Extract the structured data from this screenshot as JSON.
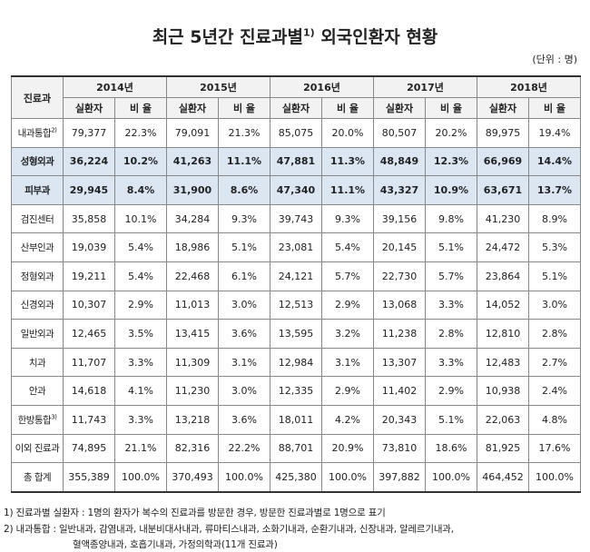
{
  "title": {
    "text": "최근 5년간 진료과별",
    "note": "1)",
    "rest": "외국인환자 현황"
  },
  "unit": "(단위 : 명)",
  "table": {
    "corner": "진료과",
    "years": [
      "2014년",
      "2015년",
      "2016년",
      "2017년",
      "2018년"
    ],
    "subheaders": [
      "실환자",
      "비 율"
    ],
    "rows": [
      {
        "name": "내과통합",
        "note": "2)",
        "cells": [
          "79,377",
          "22.3%",
          "79,091",
          "21.3%",
          "85,075",
          "20.0%",
          "80,507",
          "20.2%",
          "89,975",
          "19.4%"
        ]
      },
      {
        "name": "성형외과",
        "highlight": true,
        "cells": [
          "36,224",
          "10.2%",
          "41,263",
          "11.1%",
          "47,881",
          "11.3%",
          "48,849",
          "12.3%",
          "66,969",
          "14.4%"
        ]
      },
      {
        "name": "피부과",
        "highlight": true,
        "cells": [
          "29,945",
          "8.4%",
          "31,900",
          "8.6%",
          "47,340",
          "11.1%",
          "43,327",
          "10.9%",
          "63,671",
          "13.7%"
        ]
      },
      {
        "name": "검진센터",
        "cells": [
          "35,858",
          "10.1%",
          "34,284",
          "9.3%",
          "39,743",
          "9.3%",
          "39,156",
          "9.8%",
          "41,230",
          "8.9%"
        ]
      },
      {
        "name": "산부인과",
        "cells": [
          "19,039",
          "5.4%",
          "18,986",
          "5.1%",
          "23,081",
          "5.4%",
          "20,145",
          "5.1%",
          "24,472",
          "5.3%"
        ]
      },
      {
        "name": "정형외과",
        "cells": [
          "19,211",
          "5.4%",
          "22,468",
          "6.1%",
          "24,121",
          "5.7%",
          "22,730",
          "5.7%",
          "23,864",
          "5.1%"
        ]
      },
      {
        "name": "신경외과",
        "cells": [
          "10,307",
          "2.9%",
          "11,013",
          "3.0%",
          "12,513",
          "2.9%",
          "13,068",
          "3.3%",
          "14,052",
          "3.0%"
        ]
      },
      {
        "name": "일반외과",
        "cells": [
          "12,465",
          "3.5%",
          "13,415",
          "3.6%",
          "13,595",
          "3.2%",
          "11,238",
          "2.8%",
          "12,810",
          "2.8%"
        ]
      },
      {
        "name": "치과",
        "cells": [
          "11,707",
          "3.3%",
          "11,309",
          "3.1%",
          "12,984",
          "3.1%",
          "13,307",
          "3.3%",
          "12,483",
          "2.7%"
        ]
      },
      {
        "name": "안과",
        "cells": [
          "14,618",
          "4.1%",
          "11,230",
          "3.0%",
          "12,335",
          "2.9%",
          "11,402",
          "2.9%",
          "10,938",
          "2.4%"
        ]
      },
      {
        "name": "한방통합",
        "note": "3)",
        "cells": [
          "11,743",
          "3.3%",
          "13,218",
          "3.6%",
          "18,011",
          "4.2%",
          "20,343",
          "5.1%",
          "22,063",
          "4.8%"
        ]
      },
      {
        "name": "이외 진료과",
        "cells": [
          "74,895",
          "21.1%",
          "82,316",
          "22.2%",
          "88,701",
          "20.9%",
          "73,810",
          "18.6%",
          "81,925",
          "17.6%"
        ]
      },
      {
        "name": "총 합계",
        "cells": [
          "355,389",
          "100.0%",
          "370,493",
          "100.0%",
          "425,380",
          "100.0%",
          "397,882",
          "100.0%",
          "464,452",
          "100.0%"
        ]
      }
    ]
  },
  "footnotes": [
    "1) 진료과별 실환자 : 1명의 환자가 복수의 진료과를 방문한 경우, 방문한 진료과별로 1명으로 표기",
    "2) 내과통합 : 일반내과, 감염내과, 내분비대사내과, 류마티스내과, 소화기내과, 순환기내과, 신장내과, 알레르기내과,",
    "혈액종양내과, 호흡기내과, 가정의학과(11개 진료과)"
  ]
}
